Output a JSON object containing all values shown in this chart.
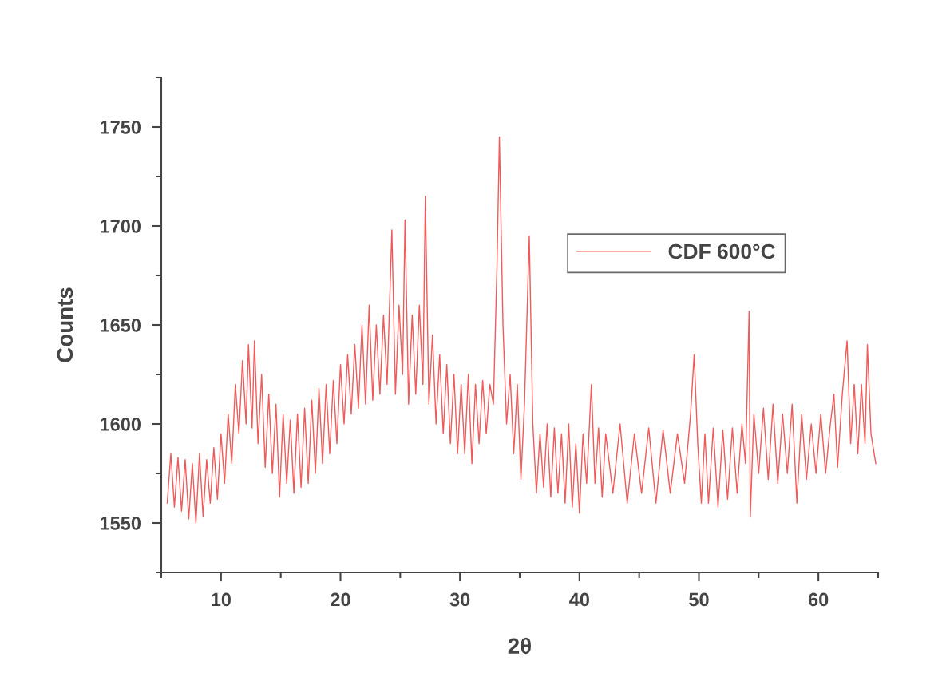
{
  "chart_data": {
    "type": "line",
    "xlabel": "2θ",
    "ylabel": "Counts",
    "xlim": [
      5,
      65
    ],
    "ylim": [
      1525,
      1775
    ],
    "xticks": [
      {
        "value": 5,
        "label": null
      },
      10,
      {
        "value": 15,
        "label": null
      },
      20,
      {
        "value": 25,
        "label": null
      },
      30,
      {
        "value": 35,
        "label": null
      },
      40,
      {
        "value": 45,
        "label": null
      },
      50,
      {
        "value": 55,
        "label": null
      },
      60,
      {
        "value": 65,
        "label": null
      }
    ],
    "yticks": [
      {
        "value": 1525,
        "label": null
      },
      1550,
      {
        "value": 1575,
        "label": null
      },
      1600,
      {
        "value": 1625,
        "label": null
      },
      1650,
      {
        "value": 1675,
        "label": null
      },
      1700,
      {
        "value": 1725,
        "label": null
      },
      1750,
      {
        "value": 1775,
        "label": null
      }
    ],
    "grid": false,
    "legend": "top right",
    "marker": "none",
    "line_style": "solid",
    "series": [
      {
        "name": "CDF 600°C",
        "color": "#f05a5a",
        "x": [
          5.5,
          5.8,
          6.1,
          6.4,
          6.7,
          7.0,
          7.3,
          7.6,
          7.9,
          8.2,
          8.5,
          8.8,
          9.1,
          9.4,
          9.7,
          10.0,
          10.3,
          10.6,
          10.9,
          11.2,
          11.5,
          11.8,
          12.1,
          12.3,
          12.6,
          12.8,
          13.1,
          13.4,
          13.7,
          14.0,
          14.3,
          14.6,
          14.9,
          15.2,
          15.5,
          15.8,
          16.1,
          16.4,
          16.7,
          17.0,
          17.3,
          17.6,
          17.9,
          18.2,
          18.5,
          18.8,
          19.1,
          19.4,
          19.7,
          20.0,
          20.3,
          20.6,
          20.9,
          21.2,
          21.5,
          21.8,
          22.1,
          22.4,
          22.7,
          23.0,
          23.3,
          23.6,
          23.9,
          24.3,
          24.6,
          24.9,
          25.2,
          25.4,
          25.7,
          26.0,
          26.3,
          26.6,
          26.9,
          27.1,
          27.4,
          27.7,
          28.0,
          28.3,
          28.6,
          28.9,
          29.2,
          29.5,
          29.8,
          30.1,
          30.4,
          30.7,
          31.0,
          31.3,
          31.6,
          31.9,
          32.2,
          32.5,
          32.8,
          33.1,
          33.3,
          33.6,
          33.9,
          34.2,
          34.5,
          34.8,
          35.1,
          35.4,
          35.8,
          36.1,
          36.4,
          36.7,
          37.0,
          37.3,
          37.6,
          37.9,
          38.2,
          38.5,
          38.8,
          39.1,
          39.4,
          39.7,
          40.0,
          40.3,
          40.6,
          41.0,
          41.3,
          41.6,
          41.9,
          42.2,
          42.8,
          43.4,
          44.0,
          44.6,
          45.2,
          45.8,
          46.4,
          47.0,
          47.6,
          48.2,
          48.8,
          49.3,
          49.6,
          49.9,
          50.2,
          50.5,
          50.8,
          51.2,
          51.6,
          52.0,
          52.4,
          52.8,
          53.2,
          53.6,
          53.9,
          54.2,
          54.3,
          54.6,
          55.0,
          55.4,
          55.8,
          56.2,
          56.6,
          57.0,
          57.4,
          57.8,
          58.2,
          58.6,
          59.0,
          59.4,
          59.8,
          60.2,
          60.6,
          61.0,
          61.3,
          61.6,
          62.0,
          62.4,
          62.7,
          63.0,
          63.3,
          63.6,
          63.9,
          64.1,
          64.4,
          64.8
        ],
        "values": [
          1560,
          1585,
          1558,
          1583,
          1556,
          1582,
          1552,
          1580,
          1550,
          1585,
          1553,
          1582,
          1560,
          1588,
          1562,
          1595,
          1570,
          1605,
          1580,
          1620,
          1595,
          1632,
          1600,
          1640,
          1598,
          1642,
          1590,
          1625,
          1578,
          1615,
          1575,
          1610,
          1563,
          1605,
          1570,
          1602,
          1565,
          1605,
          1568,
          1608,
          1570,
          1612,
          1575,
          1618,
          1580,
          1620,
          1585,
          1622,
          1590,
          1630,
          1600,
          1635,
          1605,
          1640,
          1608,
          1650,
          1610,
          1660,
          1612,
          1650,
          1615,
          1655,
          1620,
          1698,
          1615,
          1660,
          1625,
          1703,
          1610,
          1655,
          1615,
          1660,
          1620,
          1715,
          1610,
          1645,
          1600,
          1635,
          1595,
          1630,
          1590,
          1625,
          1585,
          1620,
          1585,
          1625,
          1580,
          1620,
          1590,
          1622,
          1595,
          1620,
          1610,
          1680,
          1745,
          1650,
          1600,
          1625,
          1585,
          1620,
          1572,
          1610,
          1695,
          1600,
          1565,
          1595,
          1568,
          1600,
          1563,
          1598,
          1565,
          1595,
          1560,
          1600,
          1558,
          1590,
          1555,
          1595,
          1570,
          1620,
          1570,
          1598,
          1563,
          1595,
          1565,
          1600,
          1560,
          1595,
          1565,
          1598,
          1560,
          1597,
          1565,
          1595,
          1570,
          1605,
          1635,
          1590,
          1560,
          1595,
          1560,
          1598,
          1558,
          1597,
          1562,
          1598,
          1565,
          1600,
          1580,
          1657,
          1553,
          1605,
          1575,
          1608,
          1572,
          1610,
          1570,
          1605,
          1575,
          1610,
          1560,
          1605,
          1572,
          1600,
          1575,
          1605,
          1575,
          1600,
          1615,
          1578,
          1615,
          1642,
          1590,
          1620,
          1585,
          1620,
          1590,
          1640,
          1595,
          1580
        ]
      }
    ]
  }
}
